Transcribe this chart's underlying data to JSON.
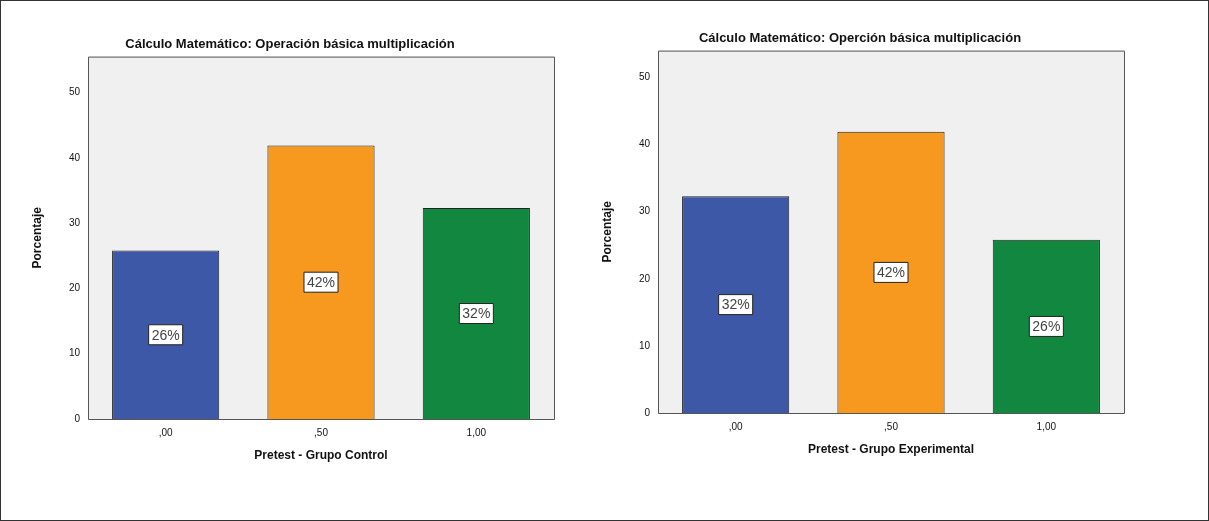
{
  "chart_data": [
    {
      "type": "bar",
      "title": "Cálculo Matemático: Operación básica multiplicación",
      "xlabel": "Pretest - Grupo Control",
      "ylabel": "Porcentaje",
      "categories": [
        ",00",
        ",50",
        "1,00"
      ],
      "values": [
        25.8,
        41.9,
        32.3
      ],
      "colors": [
        "#3e58a8",
        "#f7991f",
        "#12873f"
      ],
      "value_labels": [
        "26%",
        "42%",
        "32%"
      ],
      "ylim": [
        0,
        55.5
      ],
      "yticks": [
        0,
        10,
        20,
        30,
        40,
        50
      ]
    },
    {
      "type": "bar",
      "title": "Cálculo Matemático: Operción básica multiplicación",
      "xlabel": "Pretest - Grupo Experimental",
      "ylabel": "Porcentaje",
      "categories": [
        ",00",
        ",50",
        "1,00"
      ],
      "values": [
        32.3,
        41.9,
        25.8
      ],
      "colors": [
        "#3e58a8",
        "#f7991f",
        "#12873f"
      ],
      "value_labels": [
        "32%",
        "42%",
        "26%"
      ],
      "ylim": [
        0,
        54
      ],
      "yticks": [
        0,
        10,
        20,
        30,
        40,
        50
      ]
    }
  ]
}
